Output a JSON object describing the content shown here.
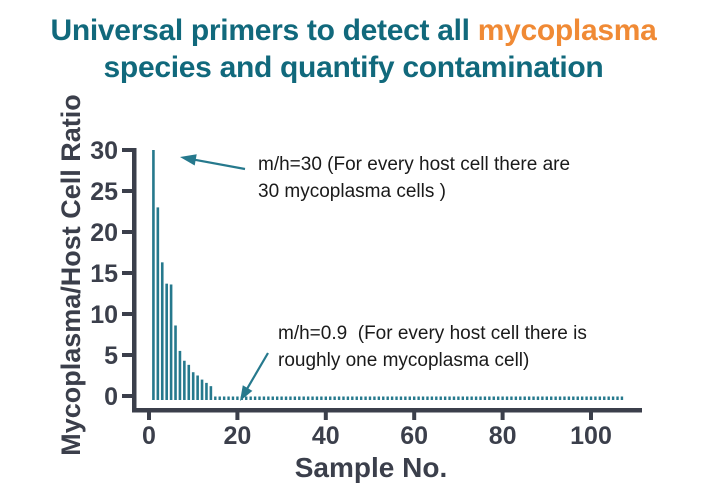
{
  "title": {
    "line1_plain": "Universal primers to detect all ",
    "line1_highlight": "mycoplasma",
    "line2": "species and quantify contamination"
  },
  "colors": {
    "title_teal": "#11697C",
    "highlight_orange": "#F08A35",
    "bar_teal": "#26798D",
    "axis_dark": "#3B3F4B",
    "annotation_text": "#1A1A1A"
  },
  "annotations": {
    "high": {
      "line1": "m/h=30 (For every host cell there are",
      "line2": "30 mycoplasma cells )"
    },
    "low": {
      "line1": "m/h=0.9  (For every host cell there is",
      "line2": "roughly one mycoplasma cell)"
    }
  },
  "chart_data": {
    "type": "bar",
    "title": "",
    "xlabel": "Sample No.",
    "ylabel": "Mycoplasma/Host Cell Ratio",
    "xlim": [
      0,
      111
    ],
    "ylim": [
      0,
      30
    ],
    "x_ticks": [
      0,
      20,
      40,
      60,
      80,
      100
    ],
    "y_ticks": [
      0,
      5,
      10,
      15,
      20,
      25,
      30
    ],
    "grid": "off",
    "legend": "none",
    "bar_color": "#26798D",
    "x": [
      1,
      2,
      3,
      4,
      5,
      6,
      7,
      8,
      9,
      10,
      11,
      12,
      13,
      14
    ],
    "values": [
      30,
      23,
      16.3,
      13.7,
      13.6,
      8.6,
      5.5,
      4.3,
      3.8,
      2.9,
      2.5,
      2.0,
      1.6,
      1.2
    ],
    "dotted_tail": {
      "from": 15,
      "to": 107,
      "value": 0.9
    }
  }
}
